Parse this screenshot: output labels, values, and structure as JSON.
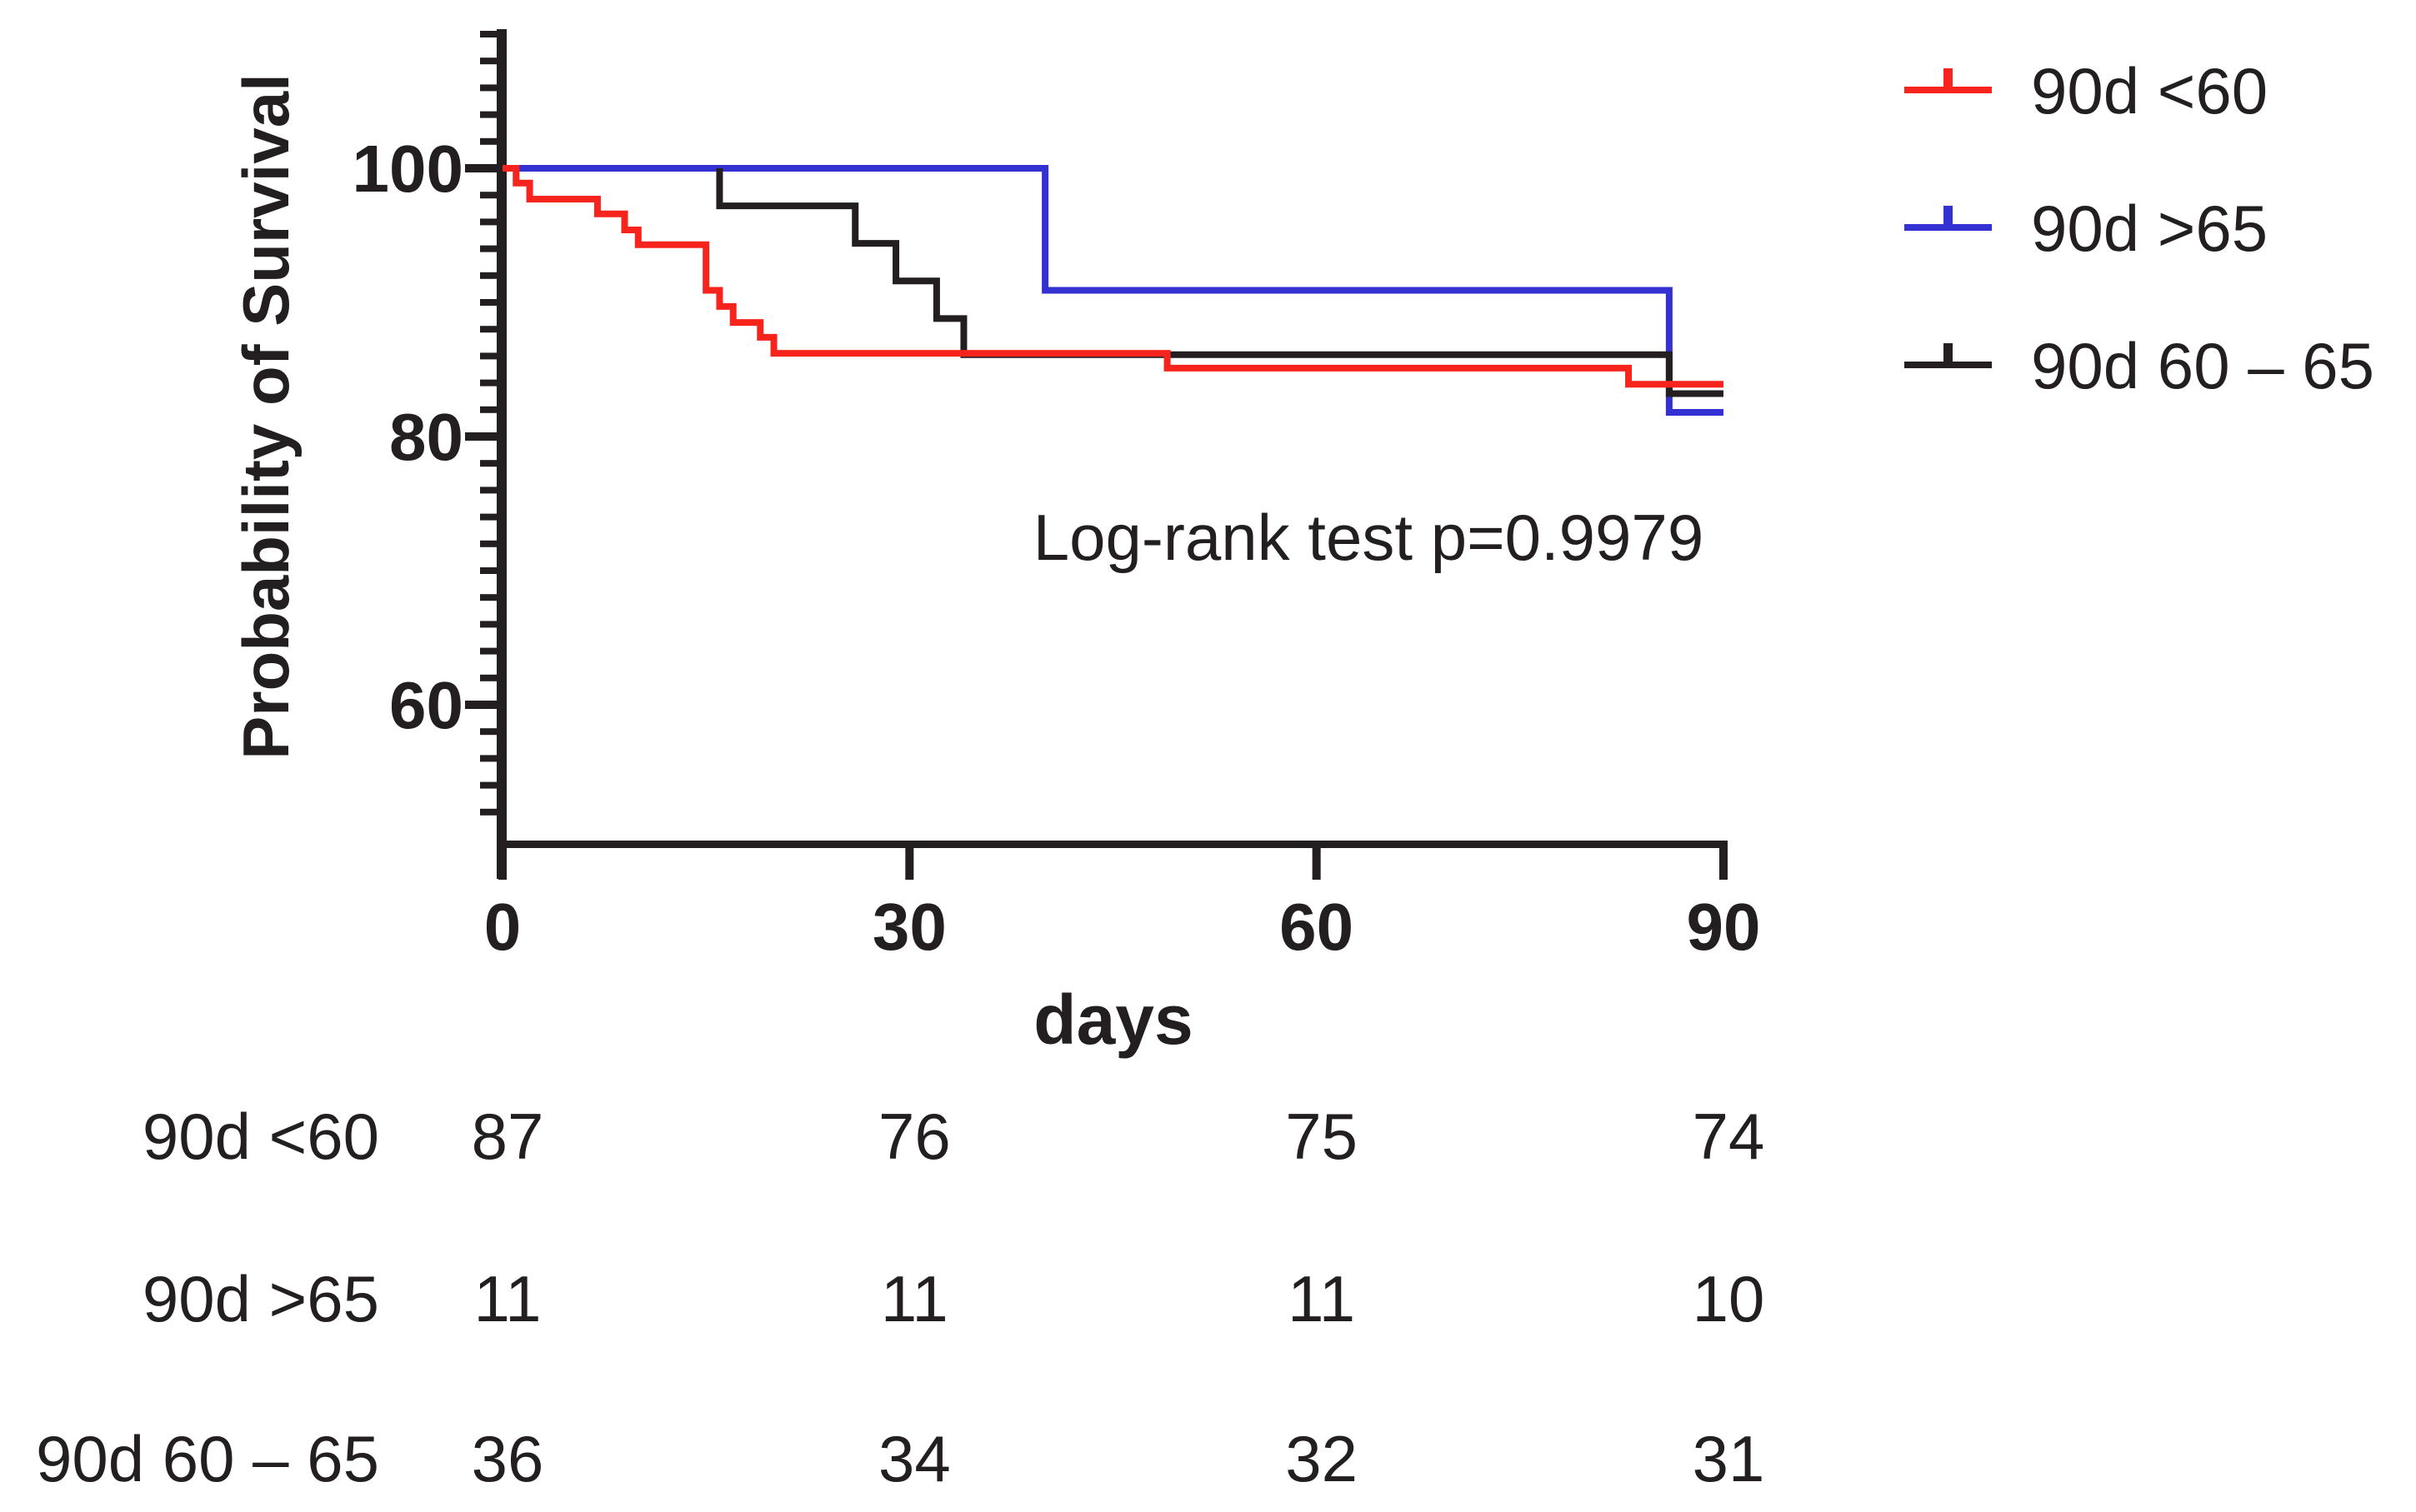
{
  "chart_data": {
    "type": "line",
    "subtype": "kaplan-meier-step-survival",
    "title": "",
    "xlabel": "days",
    "ylabel": "Probability of Survival",
    "annotation": "Log-rank test p=0.9979",
    "xlim": [
      0,
      90
    ],
    "ylim": [
      50,
      110
    ],
    "x_ticks": [
      0,
      30,
      60,
      90
    ],
    "y_ticks": [
      60,
      80,
      100
    ],
    "y_minor_tick_step": 2,
    "grid": false,
    "legend_position": "top-right",
    "draw_order": [
      1,
      2,
      0
    ],
    "series": [
      {
        "name": "90d <60",
        "color": "#f6241c",
        "steps": [
          [
            0,
            100
          ],
          [
            1,
            98.9
          ],
          [
            2,
            97.7
          ],
          [
            7,
            96.6
          ],
          [
            9,
            95.4
          ],
          [
            10,
            94.3
          ],
          [
            15,
            90.9
          ],
          [
            16,
            89.7
          ],
          [
            17,
            88.5
          ],
          [
            19,
            87.4
          ],
          [
            20,
            86.2
          ],
          [
            49,
            85.1
          ],
          [
            83,
            83.9
          ]
        ],
        "end_x": 90
      },
      {
        "name": "90d >65",
        "color": "#3331d2",
        "steps": [
          [
            0,
            100
          ],
          [
            40,
            90.9
          ],
          [
            86,
            81.8
          ]
        ],
        "end_x": 90
      },
      {
        "name": "90d 60 – 65",
        "color": "#231f20",
        "steps": [
          [
            16,
            100
          ],
          [
            16,
            97.2
          ],
          [
            26,
            94.4
          ],
          [
            29,
            91.6
          ],
          [
            32,
            88.8
          ],
          [
            34,
            86.1
          ],
          [
            86,
            83.2
          ]
        ],
        "end_x": 90
      }
    ]
  },
  "risk_table": {
    "time_points": [
      0,
      30,
      60,
      90
    ],
    "rows": [
      {
        "label": "90d <60",
        "values": [
          "87",
          "76",
          "75",
          "74"
        ]
      },
      {
        "label": "90d >65",
        "values": [
          "11",
          "11",
          "11",
          "10"
        ]
      },
      {
        "label": "90d 60 – 65",
        "values": [
          "36",
          "34",
          "32",
          "31"
        ]
      }
    ]
  }
}
